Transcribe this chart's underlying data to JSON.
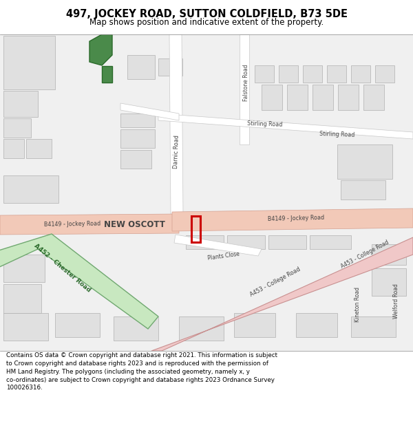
{
  "title": "497, JOCKEY ROAD, SUTTON COLDFIELD, B73 5DE",
  "subtitle": "Map shows position and indicative extent of the property.",
  "footer": "Contains OS data © Crown copyright and database right 2021. This information is subject\nto Crown copyright and database rights 2023 and is reproduced with the permission of\nHM Land Registry. The polygons (including the associated geometry, namely x, y\nco-ordinates) are subject to Crown copyright and database rights 2023 Ordnance Survey\n100026316.",
  "map_bg": "#f0f0f0",
  "road_main_color": "#f2c9b8",
  "road_main_outline": "#d4a090",
  "road_white_color": "#ffffff",
  "road_white_outline": "#c8c8c8",
  "building_fill": "#e0e0e0",
  "building_outline": "#b0b0b0",
  "green_fill": "#4a8a4a",
  "green_outline": "#2a6a2a",
  "property_color": "#cc0000",
  "a452_fill": "#c8e8c0",
  "a452_outline": "#70a870",
  "a453_fill": "#f0c8c8",
  "a453_outline": "#c89090",
  "label_dark": "#444444",
  "label_road": "#555555"
}
